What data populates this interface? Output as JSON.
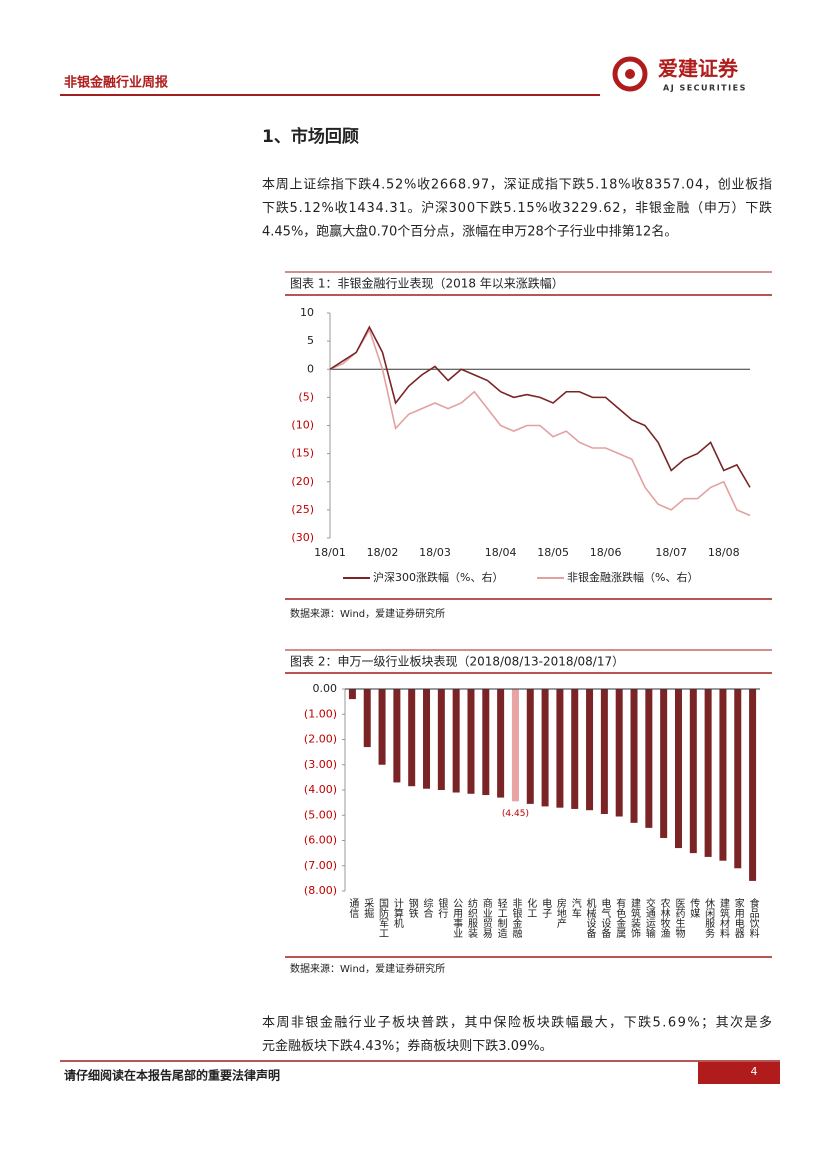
{
  "header": {
    "title": "非银金融行业周报",
    "logo_cn": "爱建证券",
    "logo_en": "AJ SECURITIES"
  },
  "section_title": "1、市场回顾",
  "paragraphs": [
    [
      "本周上证综指下跌4.52%收2668.97，深证成指下跌5.18%收8357.04，创业板指",
      "下跌5.12%收1434.31。沪深300下跌5.15%收3229.62，非银金融（申万）下跌",
      "4.45%，跑赢大盘0.70个百分点，涨幅在申万28个子行业中排第12名。"
    ],
    [
      "本周非银金融行业子板块普跌，其中保险板块跌幅最大，下跌5.69%；其次是多",
      "元金融板块下跌4.43%；券商板块则下跌3.09%。"
    ]
  ],
  "chart_data": [
    {
      "type": "line",
      "title": "图表 1：非银金融行业表现（2018 年以来涨跌幅）",
      "source": "数据来源：Wind，爱建证券研究所",
      "categories": [
        "18/01",
        null,
        null,
        null,
        "18/02",
        null,
        null,
        null,
        "18/03",
        null,
        null,
        null,
        null,
        "18/04",
        null,
        null,
        null,
        "18/05",
        null,
        null,
        null,
        "18/06",
        null,
        null,
        null,
        null,
        "18/07",
        null,
        null,
        null,
        "18/08",
        null,
        null
      ],
      "series": [
        {
          "name": "沪深300涨跌幅（%、右）",
          "color": "#7a2426",
          "values": [
            0,
            1.5,
            3,
            7.5,
            3,
            -6,
            -3,
            -1,
            0.5,
            -2,
            0,
            -1,
            -2,
            -4,
            -5,
            -4.5,
            -5,
            -6,
            -4,
            -4,
            -5,
            -5,
            -7,
            -9,
            -10,
            -13,
            -18,
            -16,
            -15,
            -13,
            -18,
            -17,
            -21
          ]
        },
        {
          "name": "非银金融涨跌幅（%、右）",
          "color": "#e4a0a0",
          "values": [
            0,
            1,
            3,
            7,
            0,
            -10.5,
            -8,
            -7,
            -6,
            -7,
            -6,
            -4,
            -7,
            -10,
            -11,
            -10,
            -10,
            -12,
            -11,
            -13,
            -14,
            -14,
            -15,
            -16,
            -21,
            -24,
            -25,
            -23,
            -23,
            -21,
            -20,
            -25,
            -26
          ]
        }
      ],
      "ylim": [
        -30,
        10
      ],
      "yticks": [
        10,
        5,
        0,
        {
          "value": -5,
          "label": "(5)"
        },
        {
          "value": -10,
          "label": "(10)"
        },
        {
          "value": -15,
          "label": "(15)"
        },
        {
          "value": -20,
          "label": "(20)"
        },
        {
          "value": -25,
          "label": "(25)"
        },
        {
          "value": -30,
          "label": "(30)"
        }
      ],
      "legend": "bottom"
    },
    {
      "type": "bar",
      "title": "图表 2：申万一级行业板块表现（2018/08/13-2018/08/17）",
      "source": "数据来源：Wind，爱建证券研究所",
      "categories": [
        "通信",
        "采掘",
        "国防军工",
        "计算机",
        "钢铁",
        "综合",
        "银行",
        "公用事业",
        "纺织服装",
        "商业贸易",
        "轻工制造",
        "非银金融",
        "化工",
        "电子",
        "房地产",
        "汽车",
        "机械设备",
        "电气设备",
        "有色金属",
        "建筑装饰",
        "交通运输",
        "农林牧渔",
        "医药生物",
        "传媒",
        "休闲服务",
        "建筑材料",
        "家用电器",
        "食品饮料"
      ],
      "values": [
        -0.4,
        -2.3,
        -3.0,
        -3.7,
        -3.85,
        -3.95,
        -4.0,
        -4.1,
        -4.15,
        -4.2,
        -4.3,
        -4.45,
        -4.55,
        -4.65,
        -4.7,
        -4.75,
        -4.8,
        -4.95,
        -5.05,
        -5.3,
        -5.5,
        -5.9,
        -6.3,
        -6.5,
        -6.65,
        -6.8,
        -7.1,
        -7.6
      ],
      "value_labels": [
        null,
        null,
        null,
        null,
        null,
        null,
        null,
        null,
        null,
        null,
        null,
        "(4.45)",
        null,
        null,
        null,
        null,
        null,
        null,
        null,
        null,
        null,
        null,
        null,
        null,
        null,
        null,
        null,
        null
      ],
      "color": "#7a2426",
      "highlight_color": "#e8a3a3",
      "ylim": [
        -8,
        0
      ],
      "yticks": [
        {
          "value": 0,
          "label": "0.00"
        },
        {
          "value": -1,
          "label": "(1.00)"
        },
        {
          "value": -2,
          "label": "(2.00)"
        },
        {
          "value": -3,
          "label": "(3.00)"
        },
        {
          "value": -4,
          "label": "(4.00)"
        },
        {
          "value": -5,
          "label": "(5.00)"
        },
        {
          "value": -6,
          "label": "(6.00)"
        },
        {
          "value": -7,
          "label": "(7.00)"
        },
        {
          "value": -8,
          "label": "(8.00)"
        }
      ]
    }
  ],
  "footer": {
    "disclaimer": "请仔细阅读在本报告尾部的重要法律声明",
    "page": 4
  }
}
